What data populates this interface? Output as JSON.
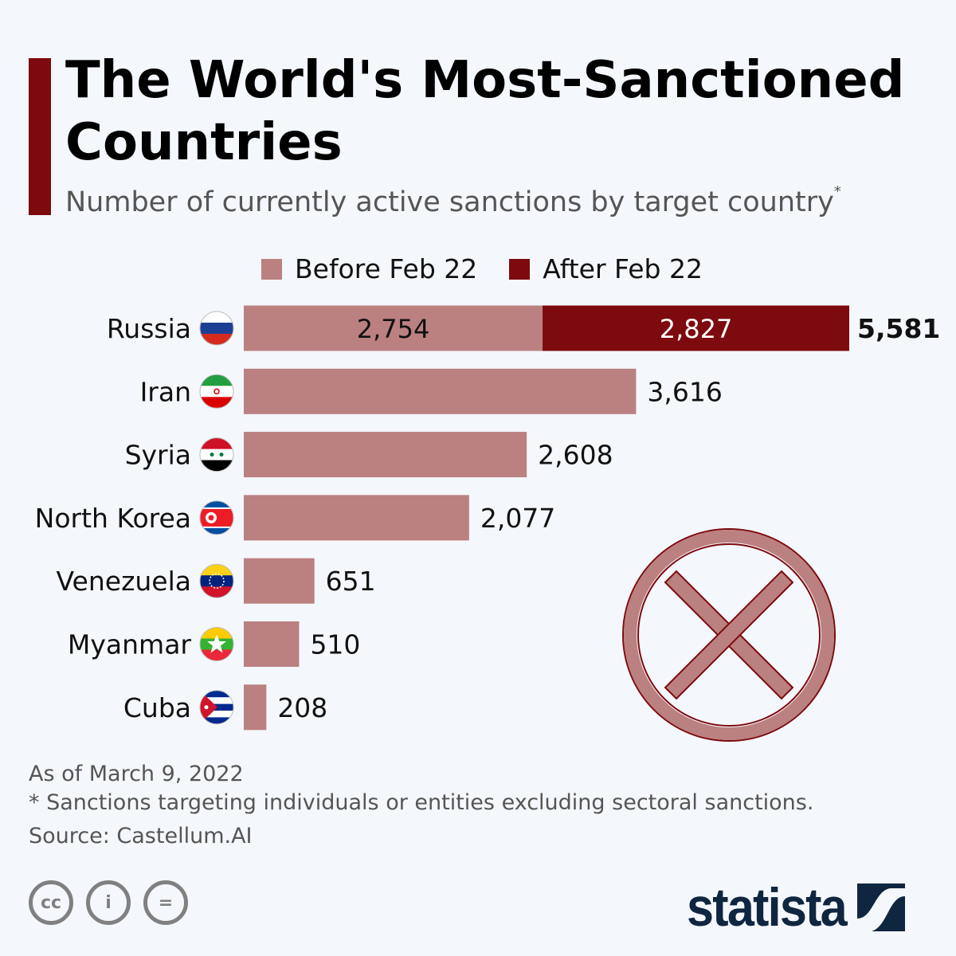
{
  "title": "The World's Most-Sanctioned Countries",
  "subtitle": "Number of currently active sanctions by target country",
  "subtitle_mark": "*",
  "colors": {
    "before": "#bb8080",
    "after": "#7d0a0f",
    "accent": "#7d0a0f",
    "logo": "#0f2640"
  },
  "chart_data": {
    "type": "bar",
    "orientation": "horizontal",
    "stacked": true,
    "categories": [
      "Russia",
      "Iran",
      "Syria",
      "North Korea",
      "Venezuela",
      "Myanmar",
      "Cuba"
    ],
    "flags": [
      "russia-flag",
      "iran-flag",
      "syria-flag",
      "north-korea-flag",
      "venezuela-flag",
      "myanmar-flag",
      "cuba-flag"
    ],
    "series": [
      {
        "name": "Before Feb 22",
        "values": [
          2754,
          3616,
          2608,
          2077,
          651,
          510,
          208
        ],
        "labels": [
          "2,754",
          null,
          null,
          null,
          null,
          null,
          null
        ]
      },
      {
        "name": "After Feb 22",
        "values": [
          2827,
          0,
          0,
          0,
          0,
          0,
          0
        ],
        "labels": [
          "2,827",
          null,
          null,
          null,
          null,
          null,
          null
        ]
      }
    ],
    "totals": [
      "5,581",
      "3,616",
      "2,608",
      "2,077",
      "651",
      "510",
      "208"
    ],
    "xlim": [
      0,
      5581
    ],
    "grid": false,
    "legend_position": "top"
  },
  "footer": {
    "date_note": "As of March 9, 2022",
    "footnote": "* Sanctions targeting individuals or entities excluding sectoral sanctions.",
    "source": "Source: Castellum.AI"
  },
  "license": {
    "cc": "cc",
    "by": "i",
    "nd": "="
  },
  "logo": "statista"
}
